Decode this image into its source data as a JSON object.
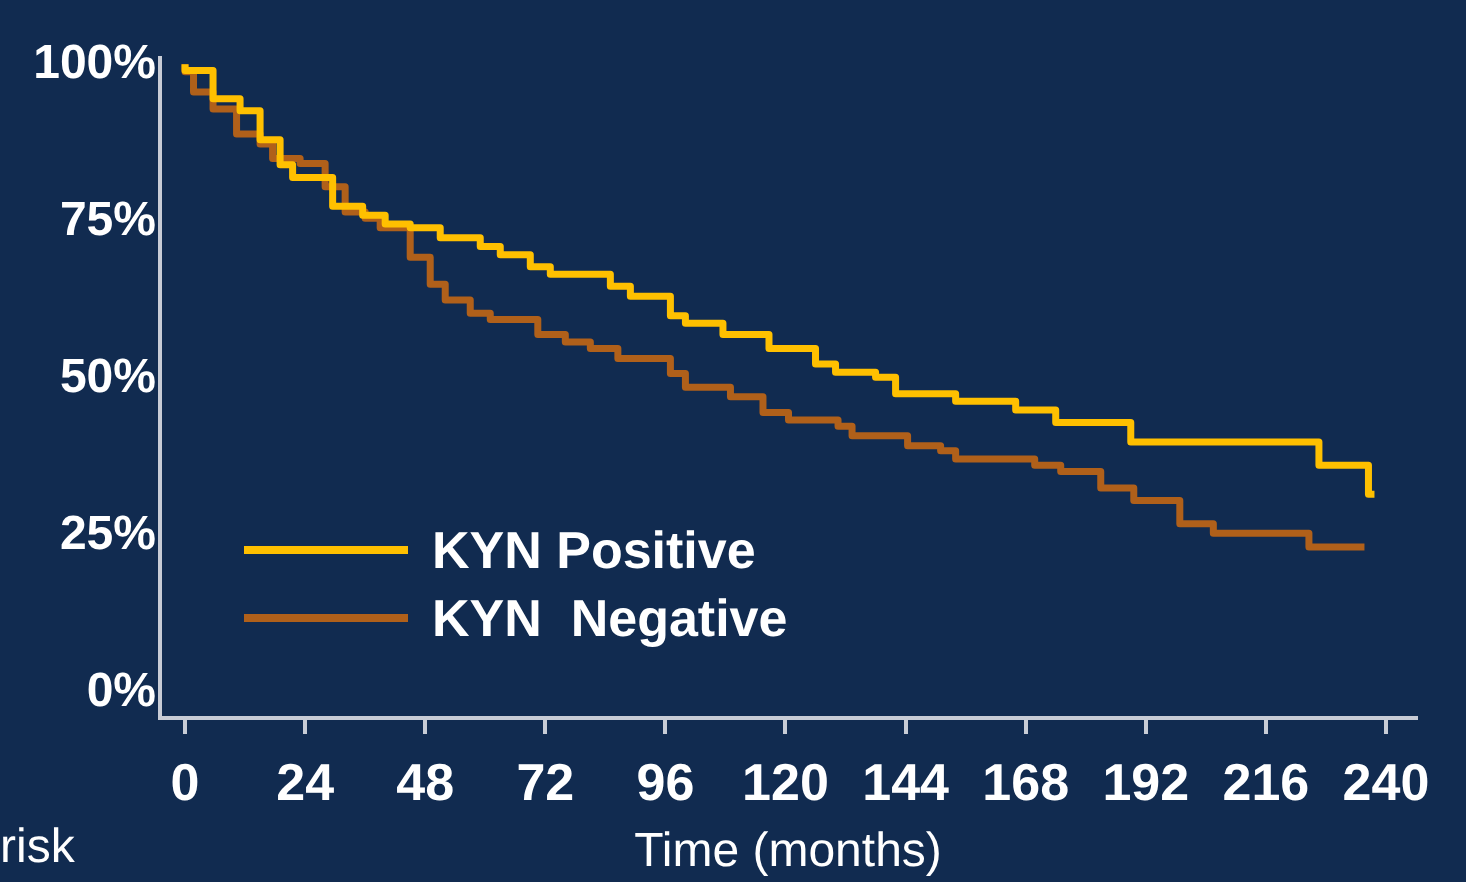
{
  "chart_data": {
    "type": "step",
    "xlabel": "Time (months)",
    "xlim": [
      -5,
      246
    ],
    "xticks": [
      0,
      24,
      48,
      72,
      96,
      120,
      144,
      168,
      192,
      216,
      240
    ],
    "ylim": [
      -4,
      101
    ],
    "yticks": [
      {
        "value": 0,
        "label": "0%"
      },
      {
        "value": 25,
        "label": "25%"
      },
      {
        "value": 50,
        "label": "50%"
      },
      {
        "value": 75,
        "label": "75%"
      },
      {
        "value": 100,
        "label": "100%"
      }
    ],
    "legend": "bottom left",
    "marker": "none",
    "line_style": "solid",
    "annotations": [
      "risk"
    ],
    "series": [
      {
        "name": "KYN Positive",
        "color": "#ffc000",
        "x": [
          0,
          5.6,
          11,
          15,
          19,
          21.5,
          29.5,
          35.5,
          40,
          45,
          51,
          59,
          63,
          69,
          73,
          85,
          89,
          97,
          100,
          107.5,
          116.7,
          126,
          130,
          138,
          142,
          154,
          166,
          174,
          189,
          226.6,
          236.5,
          237.7
        ],
        "values": [
          100,
          99,
          94.5,
          92.6,
          88,
          84,
          82,
          77.4,
          76,
          74.6,
          74,
          72.4,
          71,
          69.7,
          67.8,
          66.6,
          64.7,
          63.1,
          60,
          58.8,
          57,
          54.8,
          52.3,
          51,
          50.2,
          47.6,
          46.4,
          45,
          43,
          39.9,
          36.2,
          31.6
        ]
      },
      {
        "name": "KYN  Negative",
        "color": "#b0601a",
        "x": [
          0,
          1.7,
          5.6,
          10.3,
          15,
          17.5,
          23,
          28,
          32,
          36,
          39,
          45,
          49,
          52,
          57,
          61,
          70.5,
          76,
          81,
          86.5,
          97,
          100,
          109,
          115.5,
          120.6,
          130.5,
          133.3,
          144.4,
          151,
          154,
          169.8,
          175,
          183,
          189.6,
          198.8,
          205.5,
          224.6,
          229.8,
          235.7
        ],
        "values": [
          100,
          98.8,
          95.6,
          92.9,
          88.9,
          87.3,
          85,
          84.2,
          80.5,
          76.5,
          75.5,
          74,
          69.3,
          65,
          62.5,
          60.4,
          59.4,
          57,
          55.8,
          54.8,
          53.2,
          50.8,
          48.6,
          47.1,
          44.6,
          43.4,
          42.4,
          40.9,
          39.3,
          38.5,
          37.2,
          36.2,
          35.2,
          32.6,
          30.6,
          26.9,
          25.4,
          23.2,
          23.2
        ]
      }
    ]
  }
}
